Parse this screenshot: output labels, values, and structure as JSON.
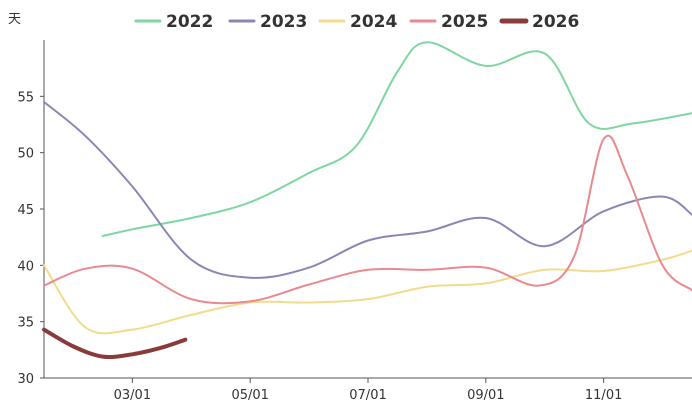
{
  "chart_data": {
    "type": "line",
    "ylabel": "天",
    "ylim": [
      30,
      60
    ],
    "yticks": [
      30,
      35,
      40,
      45,
      50,
      55
    ],
    "xlim": [
      1.5,
      12.5
    ],
    "xticks": [
      {
        "month": 3,
        "label": "03/01"
      },
      {
        "month": 5,
        "label": "05/01"
      },
      {
        "month": 7,
        "label": "07/01"
      },
      {
        "month": 9,
        "label": "09/01"
      },
      {
        "month": 11,
        "label": "11/01"
      }
    ],
    "legend_position": "top",
    "grid": false,
    "series": [
      {
        "name": "2022",
        "color": "#7fd6a0",
        "width": 2,
        "x": [
          2.5,
          3,
          4,
          5,
          6,
          6.8,
          7.5,
          8,
          9,
          10,
          10.75,
          11.5,
          12.5
        ],
        "y": [
          42.6,
          43.2,
          44.2,
          45.6,
          48.2,
          50.6,
          57.2,
          59.8,
          57.7,
          58.8,
          52.6,
          52.6,
          53.5
        ]
      },
      {
        "name": "2023",
        "color": "#8a87b6",
        "width": 2,
        "x": [
          1.5,
          2.2,
          3,
          4,
          5,
          6,
          7,
          8,
          9,
          10,
          11,
          12,
          12.5
        ],
        "y": [
          54.5,
          51.5,
          47.0,
          40.5,
          38.9,
          39.8,
          42.2,
          43.0,
          44.2,
          41.7,
          44.8,
          46.1,
          44.5
        ]
      },
      {
        "name": "2024",
        "color": "#f1dc8e",
        "width": 2,
        "x": [
          1.5,
          2.2,
          3,
          4,
          5,
          6,
          7,
          8,
          9,
          10,
          11,
          12,
          12.5
        ],
        "y": [
          40.0,
          34.5,
          34.3,
          35.6,
          36.7,
          36.7,
          37.0,
          38.1,
          38.4,
          39.6,
          39.5,
          40.5,
          41.3
        ]
      },
      {
        "name": "2025",
        "color": "#e88a8f",
        "width": 2,
        "x": [
          1.5,
          2.2,
          3,
          4,
          5,
          6,
          7,
          8,
          9,
          9.9,
          10.5,
          11,
          11.4,
          12,
          12.5
        ],
        "y": [
          38.2,
          39.7,
          39.7,
          37.0,
          36.8,
          38.3,
          39.6,
          39.6,
          39.8,
          38.2,
          40.8,
          51.2,
          48.0,
          40.0,
          37.8
        ]
      },
      {
        "name": "2026",
        "color": "#8b3a3a",
        "width": 4,
        "x": [
          1.5,
          2,
          2.5,
          3,
          3.5,
          3.9
        ],
        "y": [
          34.3,
          32.8,
          31.9,
          32.1,
          32.7,
          33.4
        ]
      }
    ]
  }
}
